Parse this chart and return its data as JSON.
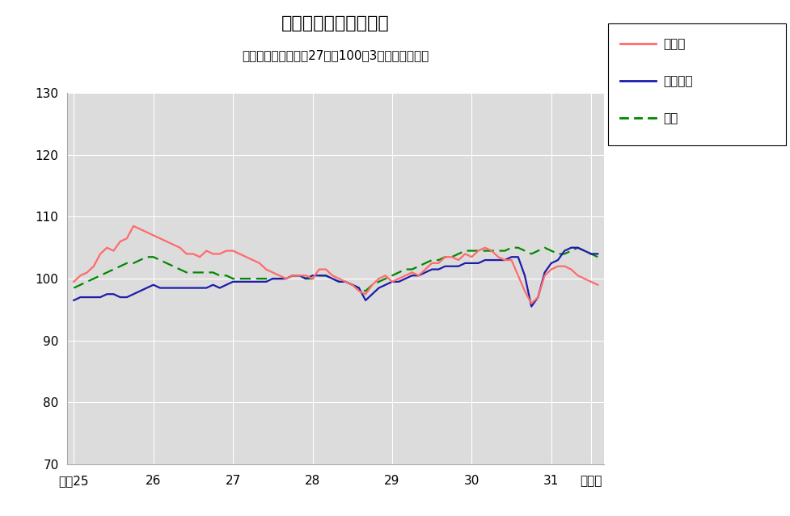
{
  "title": "鉱工業生産指数の推移",
  "subtitle": "（季節調整済、平成27年＝100、3ヶ月移動平均）",
  "ylim": [
    70,
    130
  ],
  "yticks": [
    70,
    80,
    90,
    100,
    110,
    120,
    130
  ],
  "plot_bg": "#dcdcdc",
  "outer_bg": "#ffffff",
  "x_labels": [
    "平成25",
    "26",
    "27",
    "28",
    "29",
    "30",
    "31",
    "令和元"
  ],
  "x_tick_pos": [
    0,
    12,
    24,
    36,
    48,
    60,
    72,
    78
  ],
  "n_points": 80,
  "tottori_color": "#ff6b6b",
  "chugoku_color": "#1c1caa",
  "zenkoku_color": "#008800",
  "tottori": [
    99.5,
    100.5,
    101.0,
    102.0,
    104.0,
    105.0,
    104.5,
    106.0,
    106.5,
    108.5,
    108.0,
    107.5,
    107.0,
    106.5,
    106.0,
    105.5,
    105.0,
    104.0,
    104.0,
    103.5,
    104.5,
    104.0,
    104.0,
    104.5,
    104.5,
    104.0,
    103.5,
    103.0,
    102.5,
    101.5,
    101.0,
    100.5,
    100.0,
    100.5,
    100.5,
    100.5,
    100.0,
    101.5,
    101.5,
    100.5,
    100.0,
    99.5,
    99.0,
    98.0,
    97.5,
    99.0,
    100.0,
    100.5,
    99.5,
    100.0,
    100.5,
    101.0,
    100.5,
    101.5,
    102.5,
    102.5,
    103.5,
    103.5,
    103.0,
    104.0,
    103.5,
    104.5,
    105.0,
    104.5,
    103.5,
    103.0,
    103.0,
    100.5,
    98.0,
    96.0,
    97.0,
    100.5,
    101.5,
    102.0,
    102.0,
    101.5,
    100.5,
    100.0,
    99.5,
    99.0
  ],
  "chugoku": [
    96.5,
    97.0,
    97.0,
    97.0,
    97.0,
    97.5,
    97.5,
    97.0,
    97.0,
    97.5,
    98.0,
    98.5,
    99.0,
    98.5,
    98.5,
    98.5,
    98.5,
    98.5,
    98.5,
    98.5,
    98.5,
    99.0,
    98.5,
    99.0,
    99.5,
    99.5,
    99.5,
    99.5,
    99.5,
    99.5,
    100.0,
    100.0,
    100.0,
    100.5,
    100.5,
    100.0,
    100.5,
    100.5,
    100.5,
    100.0,
    99.5,
    99.5,
    99.0,
    98.5,
    96.5,
    97.5,
    98.5,
    99.0,
    99.5,
    99.5,
    100.0,
    100.5,
    100.5,
    101.0,
    101.5,
    101.5,
    102.0,
    102.0,
    102.0,
    102.5,
    102.5,
    102.5,
    103.0,
    103.0,
    103.0,
    103.0,
    103.5,
    103.5,
    100.5,
    95.5,
    97.0,
    101.0,
    102.5,
    103.0,
    104.5,
    105.0,
    105.0,
    104.5,
    104.0,
    104.0
  ],
  "zenkoku": [
    98.5,
    99.0,
    99.5,
    100.0,
    100.5,
    101.0,
    101.5,
    102.0,
    102.5,
    102.5,
    103.0,
    103.5,
    103.5,
    103.0,
    102.5,
    102.0,
    101.5,
    101.0,
    101.0,
    101.0,
    101.0,
    101.0,
    100.5,
    100.5,
    100.0,
    100.0,
    100.0,
    100.0,
    100.0,
    100.0,
    100.0,
    100.0,
    100.0,
    100.5,
    100.5,
    100.0,
    100.0,
    100.5,
    100.5,
    100.0,
    99.5,
    99.5,
    99.0,
    98.5,
    98.0,
    99.0,
    99.5,
    100.0,
    100.5,
    101.0,
    101.5,
    101.5,
    102.0,
    102.5,
    103.0,
    103.0,
    103.5,
    103.5,
    104.0,
    104.5,
    104.5,
    104.5,
    104.5,
    104.5,
    104.5,
    104.5,
    105.0,
    105.0,
    104.5,
    104.0,
    104.5,
    105.0,
    104.5,
    104.0,
    104.0,
    104.5,
    105.0,
    104.5,
    104.0,
    103.5
  ]
}
